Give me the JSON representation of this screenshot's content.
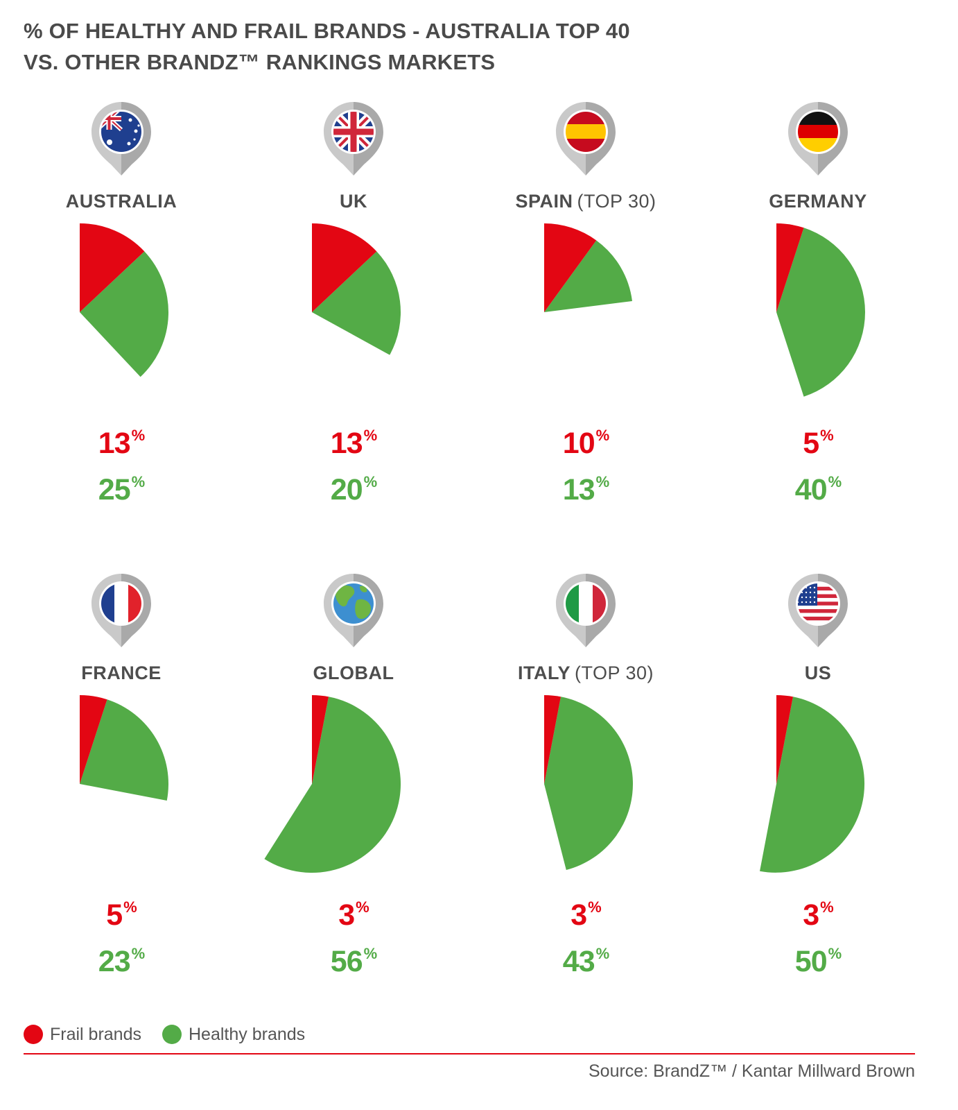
{
  "title_lines": [
    "% OF HEALTHY AND FRAIL BRANDS - AUSTRALIA TOP 40",
    "VS. OTHER BRANDZ™ RANKINGS MARKETS"
  ],
  "colors": {
    "frail": "#e30613",
    "healthy": "#53ab47",
    "text": "#4d4d4d"
  },
  "chart_data": {
    "type": "pie",
    "title": "% OF HEALTHY AND FRAIL BRANDS - AUSTRALIA TOP 40 VS. OTHER BRANDZ™ RANKINGS MARKETS",
    "series_names": [
      "Frail brands",
      "Healthy brands"
    ],
    "markets": [
      {
        "name": "AUSTRALIA",
        "suffix": "",
        "flag": "australia-flag-icon",
        "frail": 13,
        "healthy": 25
      },
      {
        "name": "UK",
        "suffix": "",
        "flag": "uk-flag-icon",
        "frail": 13,
        "healthy": 20
      },
      {
        "name": "SPAIN",
        "suffix": "(TOP 30)",
        "flag": "spain-flag-icon",
        "frail": 10,
        "healthy": 13
      },
      {
        "name": "GERMANY",
        "suffix": "",
        "flag": "germany-flag-icon",
        "frail": 5,
        "healthy": 40
      },
      {
        "name": "FRANCE",
        "suffix": "",
        "flag": "france-flag-icon",
        "frail": 5,
        "healthy": 23
      },
      {
        "name": "GLOBAL",
        "suffix": "",
        "flag": "globe-icon",
        "frail": 3,
        "healthy": 56
      },
      {
        "name": "ITALY",
        "suffix": "(TOP 30)",
        "flag": "italy-flag-icon",
        "frail": 3,
        "healthy": 43
      },
      {
        "name": "US",
        "suffix": "",
        "flag": "us-flag-icon",
        "frail": 3,
        "healthy": 50
      }
    ],
    "percent_sign": "%"
  },
  "legend": {
    "frail_label": "Frail brands",
    "healthy_label": "Healthy brands"
  },
  "source": "Source: BrandZ™ / Kantar Millward Brown"
}
